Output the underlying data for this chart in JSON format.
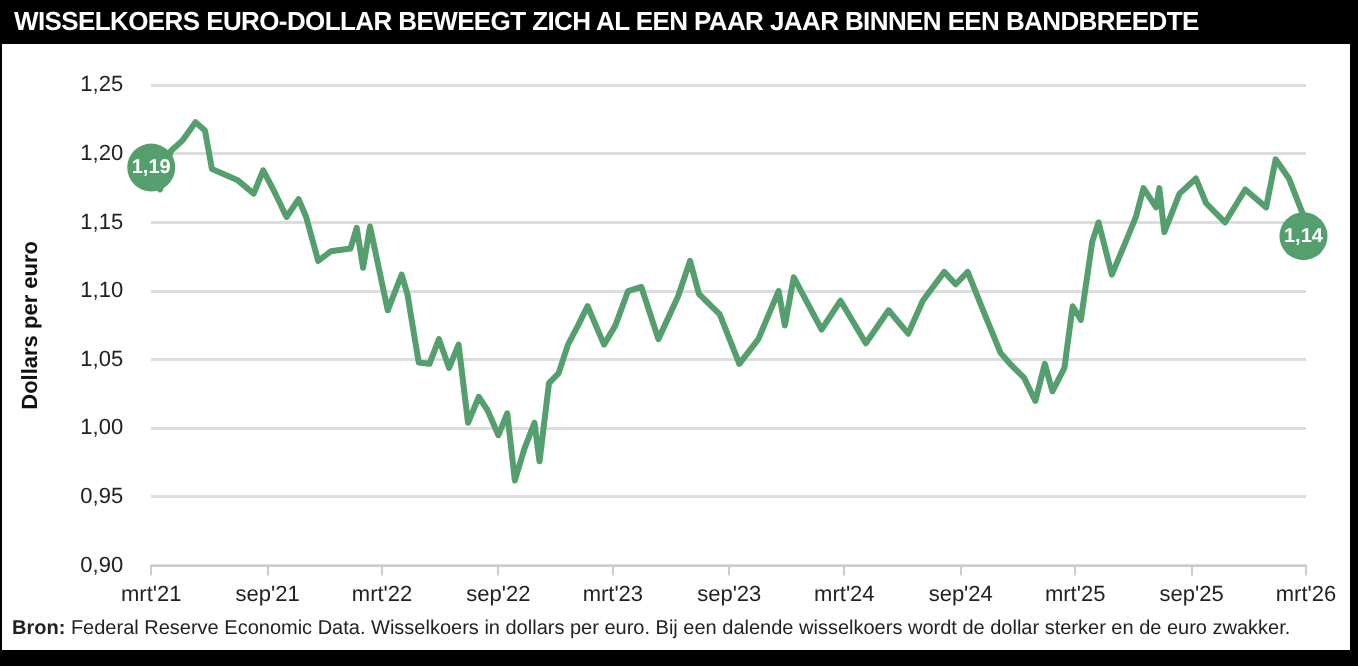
{
  "chart_data": {
    "type": "line",
    "title": "WISSELKOERS EURO-DOLLAR BEWEEGT ZICH AL EEN PAAR JAAR BINNEN EEN BANDBREEDTE",
    "ylabel": "Dollars per euro",
    "annotations": [
      {
        "text": "1,19",
        "x": "2021-03-01",
        "y": 1.19
      },
      {
        "text": "1,14",
        "x": "2026-02-25",
        "y": 1.14
      },
      "Bron: Federal Reserve Economic Data. Wisselkoers in dollars per euro. Bij een dalende wisselkoers wordt de dollar sterker en de euro zwakker."
    ],
    "x": [
      "2021-03-01",
      "2021-03-15",
      "2021-04-01",
      "2021-04-20",
      "2021-05-10",
      "2021-05-25",
      "2021-06-05",
      "2021-06-25",
      "2021-07-15",
      "2021-08-10",
      "2021-08-25",
      "2021-09-10",
      "2021-10-01",
      "2021-10-20",
      "2021-11-01",
      "2021-11-20",
      "2021-12-10",
      "2022-01-10",
      "2022-01-20",
      "2022-01-30",
      "2022-02-10",
      "2022-03-10",
      "2022-04-01",
      "2022-04-10",
      "2022-04-28",
      "2022-05-15",
      "2022-05-30",
      "2022-06-15",
      "2022-06-30",
      "2022-07-15",
      "2022-08-01",
      "2022-08-15",
      "2022-09-01",
      "2022-09-15",
      "2022-09-27",
      "2022-10-12",
      "2022-10-28",
      "2022-11-05",
      "2022-11-20",
      "2022-12-05",
      "2022-12-20",
      "2023-01-05",
      "2023-01-20",
      "2023-02-15",
      "2023-03-05",
      "2023-03-25",
      "2023-04-15",
      "2023-05-12",
      "2023-06-12",
      "2023-07-01",
      "2023-07-15",
      "2023-08-17",
      "2023-09-17",
      "2023-10-17",
      "2023-11-18",
      "2023-11-28",
      "2023-12-12",
      "2024-01-25",
      "2024-02-24",
      "2024-04-04",
      "2024-05-10",
      "2024-06-10",
      "2024-07-03",
      "2024-08-06",
      "2024-08-24",
      "2024-09-12",
      "2024-10-09",
      "2024-11-03",
      "2024-11-18",
      "2024-12-10",
      "2024-12-28",
      "2025-01-12",
      "2025-01-24",
      "2025-02-12",
      "2025-02-25",
      "2025-03-10",
      "2025-03-28",
      "2025-04-07",
      "2025-04-28",
      "2025-05-20",
      "2025-06-05",
      "2025-06-17",
      "2025-07-07",
      "2025-07-12",
      "2025-07-20",
      "2025-08-13",
      "2025-09-08",
      "2025-09-24",
      "2025-10-24",
      "2025-11-25",
      "2025-12-28",
      "2026-01-12",
      "2026-02-02",
      "2026-02-25"
    ],
    "series": [
      {
        "color": "#559e6e",
        "values": [
          1.19,
          1.174,
          1.202,
          1.21,
          1.223,
          1.217,
          1.189,
          1.185,
          1.181,
          1.171,
          1.188,
          1.174,
          1.154,
          1.167,
          1.154,
          1.122,
          1.129,
          1.131,
          1.146,
          1.117,
          1.147,
          1.086,
          1.112,
          1.098,
          1.048,
          1.047,
          1.065,
          1.044,
          1.061,
          1.004,
          1.023,
          1.013,
          0.995,
          1.011,
          0.962,
          0.985,
          1.004,
          0.976,
          1.033,
          1.04,
          1.061,
          1.075,
          1.089,
          1.061,
          1.075,
          1.1,
          1.103,
          1.065,
          1.096,
          1.122,
          1.098,
          1.083,
          1.047,
          1.065,
          1.1,
          1.075,
          1.11,
          1.072,
          1.093,
          1.062,
          1.086,
          1.069,
          1.093,
          1.114,
          1.105,
          1.114,
          1.083,
          1.055,
          1.047,
          1.037,
          1.02,
          1.047,
          1.027,
          1.044,
          1.089,
          1.079,
          1.136,
          1.15,
          1.112,
          1.136,
          1.154,
          1.175,
          1.161,
          1.175,
          1.143,
          1.171,
          1.182,
          1.164,
          1.15,
          1.174,
          1.161,
          1.196,
          1.182,
          1.155
        ]
      }
    ],
    "xlim": [
      "2021-03-01",
      "2026-03-01"
    ],
    "xticks": [
      {
        "value": "2021-03-01",
        "label": "mrt'21"
      },
      {
        "value": "2021-09-01",
        "label": "sep'21"
      },
      {
        "value": "2022-03-01",
        "label": "mrt'22"
      },
      {
        "value": "2022-09-01",
        "label": "sep'22"
      },
      {
        "value": "2023-03-01",
        "label": "mrt'23"
      },
      {
        "value": "2023-09-01",
        "label": "sep'23"
      },
      {
        "value": "2024-03-01",
        "label": "mrt'24"
      },
      {
        "value": "2024-09-01",
        "label": "sep'24"
      },
      {
        "value": "2025-03-01",
        "label": "mrt'25"
      },
      {
        "value": "2025-09-01",
        "label": "sep'25"
      },
      {
        "value": "2026-03-01",
        "label": "mrt'26"
      }
    ],
    "ylim": [
      0.9,
      1.25
    ],
    "yticks": [
      {
        "value": 0.9,
        "label": "0,90"
      },
      {
        "value": 0.95,
        "label": "0,95"
      },
      {
        "value": 1.0,
        "label": "1,00"
      },
      {
        "value": 1.05,
        "label": "1,05"
      },
      {
        "value": 1.1,
        "label": "1,10"
      },
      {
        "value": 1.15,
        "label": "1,15"
      },
      {
        "value": 1.2,
        "label": "1,20"
      },
      {
        "value": 1.25,
        "label": "1,25"
      }
    ],
    "grid": "y",
    "legend": false,
    "marker": "none",
    "line_style": "solid"
  }
}
